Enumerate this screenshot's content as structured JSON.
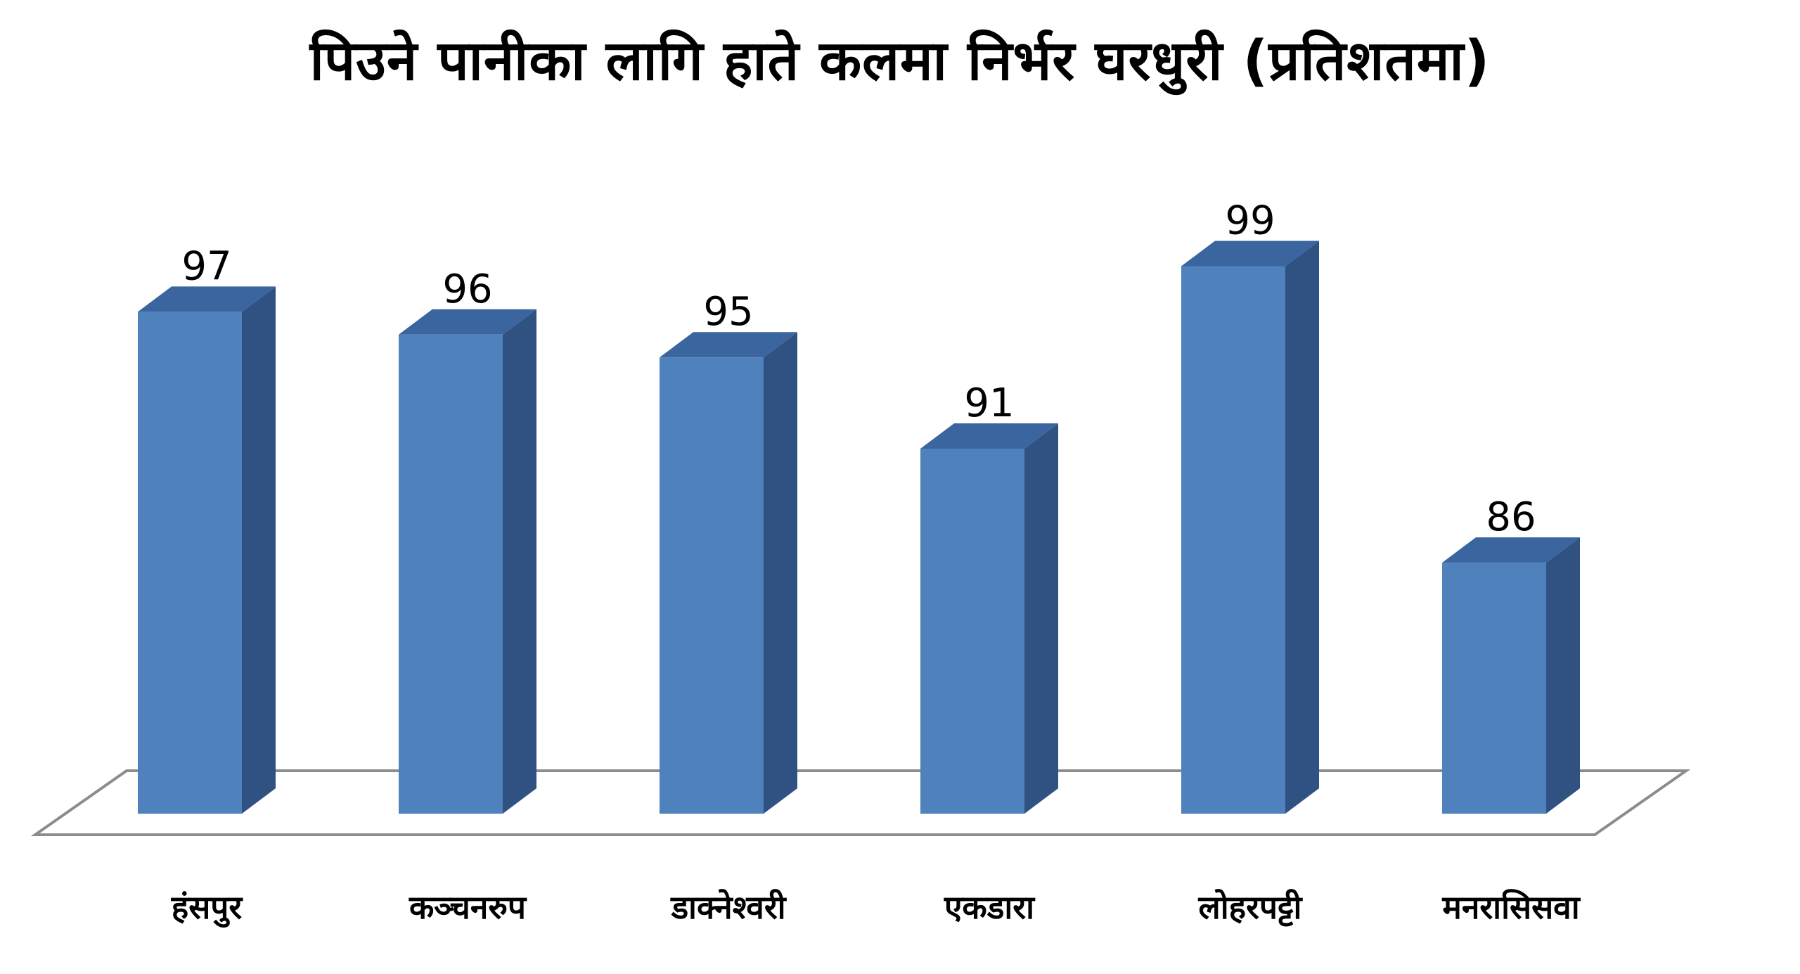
{
  "colors": {
    "bar_front": "#4f81bd",
    "bar_side": "#2f5283",
    "bar_top": "#3a659f",
    "floor_stroke": "#8c8c8c",
    "text": "#000000"
  },
  "chart_data": {
    "type": "bar",
    "title": "पिउने पानीका लागि हाते कलमा निर्भर घरधुरी (प्रतिशतमा)",
    "categories": [
      "हंसपुर",
      "कञ्चनरुप",
      "डाक्नेश्वरी",
      "एकडारा",
      "लोहरपट्टी",
      "मनरासिसवा"
    ],
    "values": [
      97,
      96,
      95,
      91,
      99,
      86
    ],
    "data_labels": [
      "97",
      "96",
      "95",
      "91",
      "99",
      "86"
    ],
    "xlabel": "",
    "ylabel": "",
    "ylim": [
      75,
      100
    ],
    "grid": false,
    "legend": "none",
    "style": "3d-column"
  }
}
